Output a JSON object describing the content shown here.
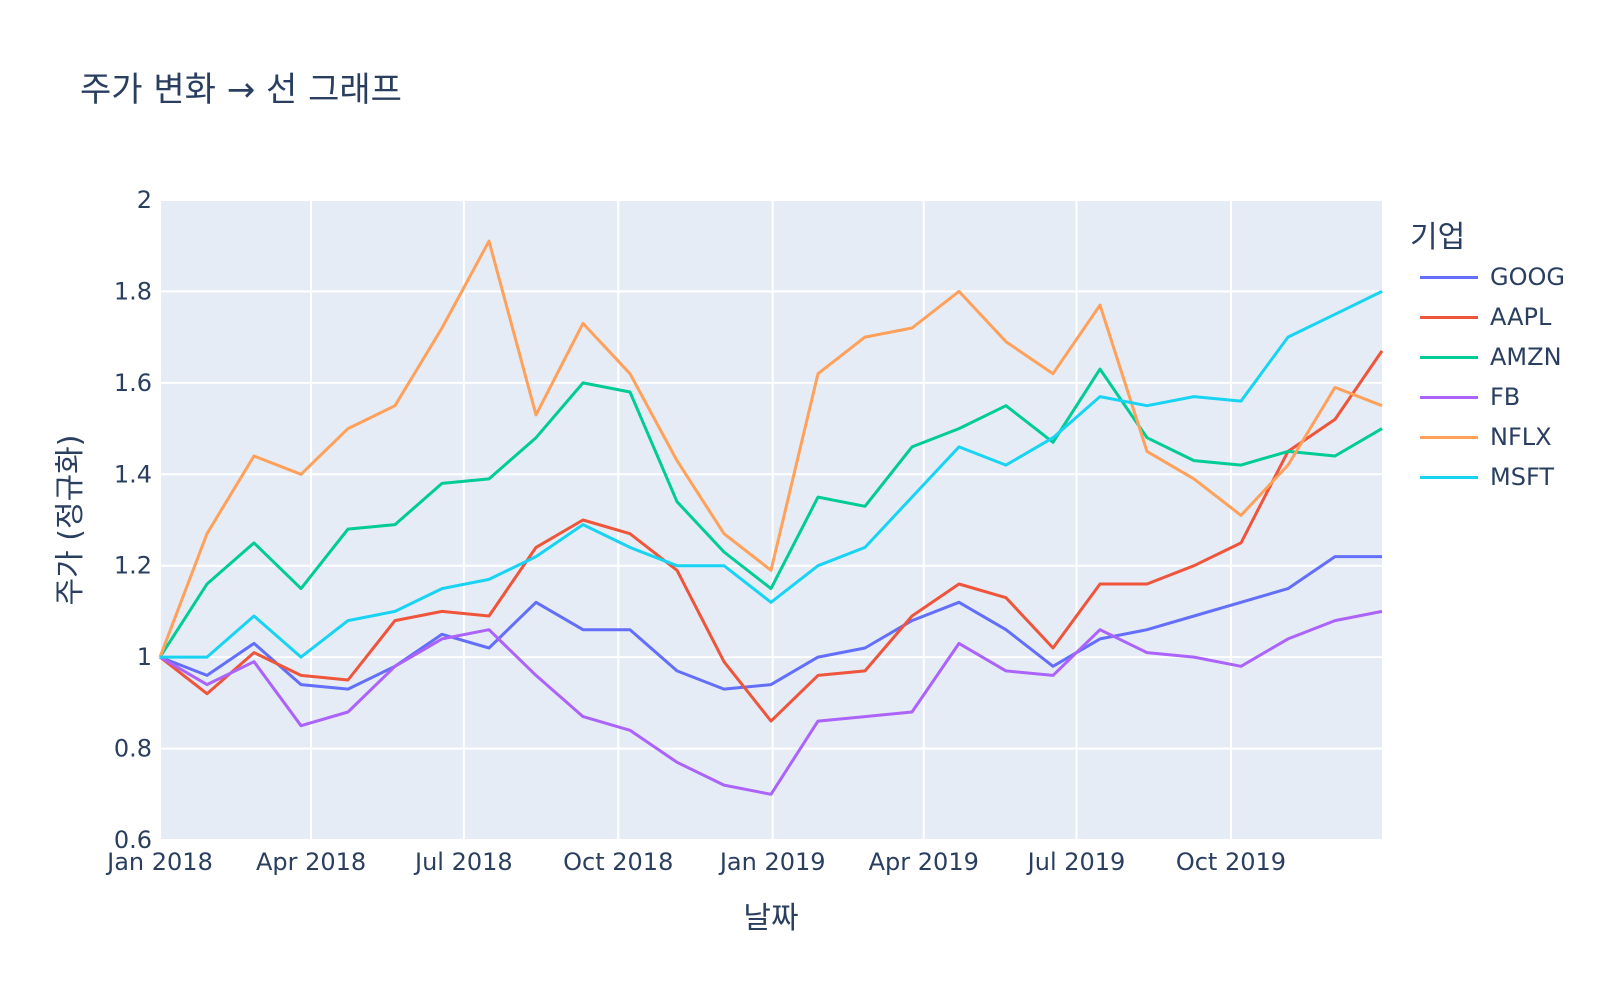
{
  "chart_data": {
    "type": "line",
    "title": "주가 변화 → 선 그래프",
    "xlabel": "날짜",
    "ylabel": "주가 (정규화)",
    "legend_title": "기업",
    "legend_position": "right",
    "grid": true,
    "xlim": [
      "2018-01-01",
      "2019-12-30"
    ],
    "ylim": [
      0.6,
      2.0
    ],
    "x_ticks": [
      "Jan 2018",
      "Apr 2018",
      "Jul 2018",
      "Oct 2018",
      "Jan 2019",
      "Apr 2019",
      "Jul 2019",
      "Oct 2019"
    ],
    "y_ticks": [
      "0.6",
      "0.8",
      "1",
      "1.2",
      "1.4",
      "1.6",
      "1.8",
      "2"
    ],
    "x": [
      "2018-01-01",
      "2018-01-29",
      "2018-02-26",
      "2018-03-26",
      "2018-04-23",
      "2018-05-21",
      "2018-06-18",
      "2018-07-16",
      "2018-08-13",
      "2018-09-10",
      "2018-10-08",
      "2018-11-05",
      "2018-12-03",
      "2018-12-31",
      "2019-01-28",
      "2019-02-25",
      "2019-03-25",
      "2019-04-22",
      "2019-05-20",
      "2019-06-17",
      "2019-07-15",
      "2019-08-12",
      "2019-09-09",
      "2019-10-07",
      "2019-11-04",
      "2019-12-02",
      "2019-12-30"
    ],
    "series": [
      {
        "name": "GOOG",
        "color": "#636efa",
        "values": [
          1.0,
          0.96,
          1.03,
          0.94,
          0.93,
          0.98,
          1.05,
          1.02,
          1.12,
          1.06,
          1.06,
          0.97,
          0.93,
          0.94,
          1.0,
          1.02,
          1.08,
          1.12,
          1.06,
          0.98,
          1.04,
          1.06,
          1.09,
          1.12,
          1.15,
          1.22,
          1.22
        ]
      },
      {
        "name": "AAPL",
        "color": "#ef553b",
        "values": [
          1.0,
          0.92,
          1.01,
          0.96,
          0.95,
          1.08,
          1.1,
          1.09,
          1.24,
          1.3,
          1.27,
          1.19,
          0.99,
          0.86,
          0.96,
          0.97,
          1.09,
          1.16,
          1.13,
          1.02,
          1.16,
          1.16,
          1.2,
          1.25,
          1.45,
          1.52,
          1.67
        ]
      },
      {
        "name": "AMZN",
        "color": "#00cc96",
        "values": [
          1.0,
          1.16,
          1.25,
          1.15,
          1.28,
          1.29,
          1.38,
          1.39,
          1.48,
          1.6,
          1.58,
          1.34,
          1.23,
          1.15,
          1.35,
          1.33,
          1.46,
          1.5,
          1.55,
          1.47,
          1.63,
          1.48,
          1.43,
          1.42,
          1.45,
          1.44,
          1.5
        ]
      },
      {
        "name": "FB",
        "color": "#ab63fa",
        "values": [
          1.0,
          0.94,
          0.99,
          0.85,
          0.88,
          0.98,
          1.04,
          1.06,
          0.96,
          0.87,
          0.84,
          0.77,
          0.72,
          0.7,
          0.86,
          0.87,
          0.88,
          1.03,
          0.97,
          0.96,
          1.06,
          1.01,
          1.0,
          0.98,
          1.04,
          1.08,
          1.1
        ]
      },
      {
        "name": "NFLX",
        "color": "#ffa15a",
        "values": [
          1.0,
          1.27,
          1.44,
          1.4,
          1.5,
          1.55,
          1.72,
          1.91,
          1.53,
          1.73,
          1.62,
          1.43,
          1.27,
          1.19,
          1.62,
          1.7,
          1.72,
          1.8,
          1.69,
          1.62,
          1.77,
          1.45,
          1.39,
          1.31,
          1.42,
          1.59,
          1.55
        ]
      },
      {
        "name": "MSFT",
        "color": "#19d3f3",
        "values": [
          1.0,
          1.0,
          1.09,
          1.0,
          1.08,
          1.1,
          1.15,
          1.17,
          1.22,
          1.29,
          1.24,
          1.2,
          1.2,
          1.12,
          1.2,
          1.24,
          1.35,
          1.46,
          1.42,
          1.48,
          1.57,
          1.55,
          1.57,
          1.56,
          1.7,
          1.75,
          1.8
        ]
      }
    ]
  }
}
